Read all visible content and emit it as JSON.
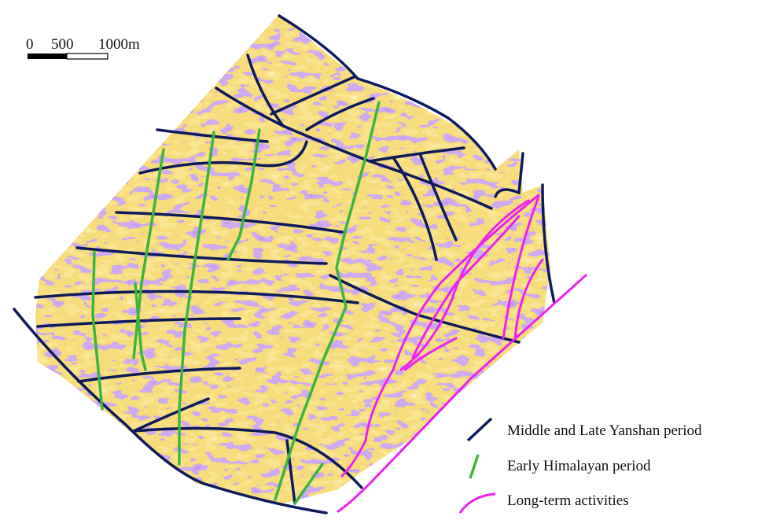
{
  "scale_bar": {
    "labels": [
      "0",
      "500",
      "1000m"
    ]
  },
  "legend": {
    "items": [
      "Middle and Late Yanshan period",
      "Early Himalayan period",
      "Long-term activities"
    ]
  }
}
